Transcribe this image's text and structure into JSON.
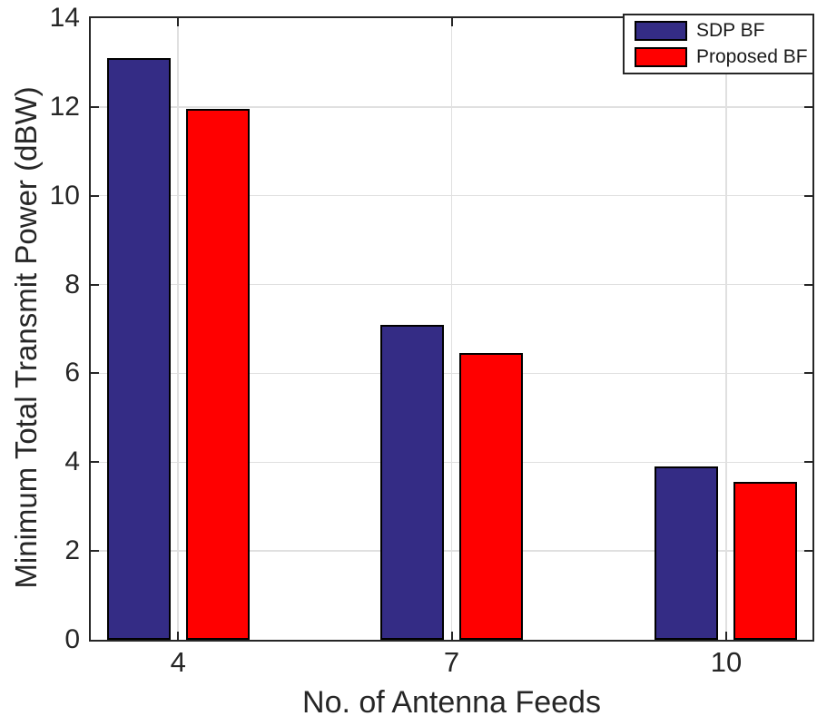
{
  "figure": {
    "background": "#ffffff",
    "axis_color": "#262626",
    "grid_color": "#e0e0e0",
    "bar_edge_color": "#000000"
  },
  "chart_data": {
    "type": "bar",
    "title": "",
    "xlabel": "No. of Antenna Feeds",
    "ylabel": "Minimum Total Transmit Power (dBW)",
    "categories": [
      "4",
      "7",
      "10"
    ],
    "series": [
      {
        "name": "SDP BF",
        "color": "#342c85",
        "values": [
          13.1,
          7.1,
          3.9
        ]
      },
      {
        "name": "Proposed BF",
        "color": "#ff0000",
        "values": [
          11.95,
          6.45,
          3.55
        ]
      }
    ],
    "ylim": [
      0,
      14
    ],
    "yticks": [
      0,
      2,
      4,
      6,
      8,
      10,
      12,
      14
    ],
    "yticklabels": [
      "0",
      "2",
      "4",
      "6",
      "8",
      "10",
      "12",
      "14"
    ],
    "grid": "both",
    "legend_position": "top-right",
    "legend_items": [
      "SDP BF",
      "Proposed BF"
    ]
  }
}
